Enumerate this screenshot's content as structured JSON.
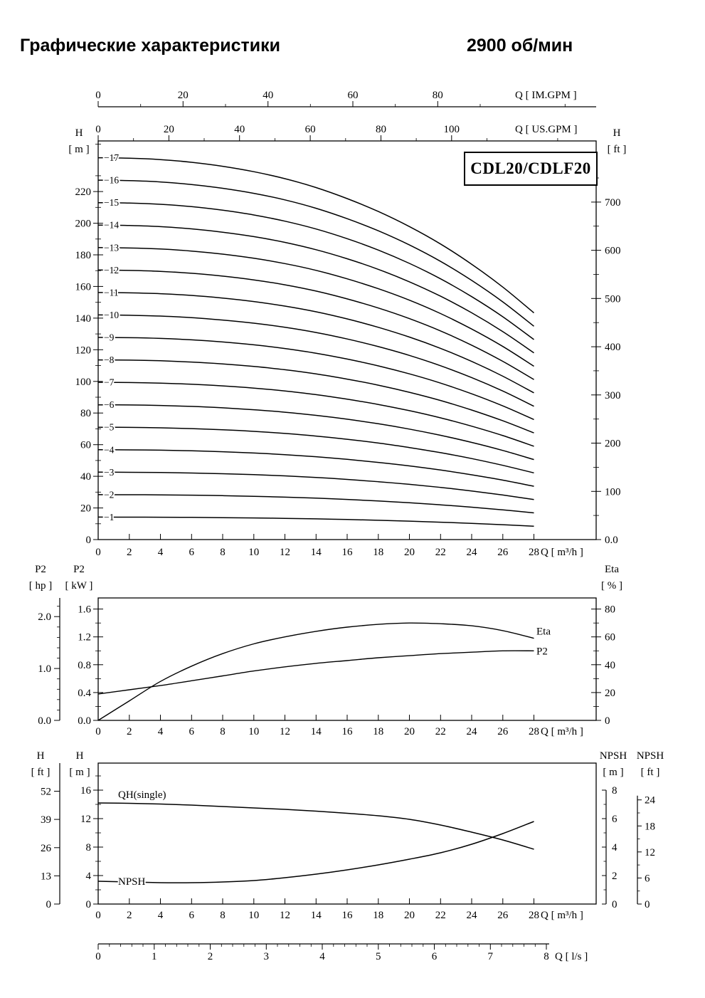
{
  "title": "Графические характеристики",
  "speed": "2900 об/мин",
  "chart_data": [
    {
      "id": "hq-curves",
      "type": "line",
      "title": "CDL20/CDLF20",
      "x": {
        "label": "Q [ m³/h ]",
        "unit": "m³/h",
        "ticks": [
          0,
          2,
          4,
          6,
          8,
          10,
          12,
          14,
          16,
          18,
          20,
          22,
          24,
          26,
          28
        ]
      },
      "x_top_us": {
        "label": "Q [ US.GPM ]",
        "ticks": [
          0,
          20,
          40,
          60,
          80,
          100
        ],
        "m3h_per_unit": 0.22712
      },
      "x_top_im": {
        "label": "Q [ IM.GPM ]",
        "ticks": [
          0,
          20,
          40,
          60,
          80
        ],
        "m3h_per_unit": 0.27276
      },
      "y_left": {
        "name": "H",
        "unit": "[ m ]",
        "vals": [
          0,
          20,
          40,
          60,
          80,
          100,
          120,
          140,
          160,
          180,
          200,
          220
        ],
        "labels": [
          "0",
          "20",
          "40",
          "60",
          "80",
          "100",
          "120",
          "140",
          "160",
          "180",
          "200",
          "220"
        ],
        "max": 252
      },
      "y_right": {
        "name": "H",
        "unit": "[ ft ]",
        "vals": [
          0,
          100,
          200,
          300,
          400,
          500,
          600,
          700
        ],
        "labels": [
          "0.0",
          "100",
          "200",
          "300",
          "400",
          "500",
          "600",
          "700"
        ],
        "m_per_ft": 0.3048
      },
      "single_stage_curve": {
        "q": [
          0,
          2,
          4,
          6,
          8,
          10,
          12,
          14,
          16,
          18,
          20,
          22,
          24,
          26,
          28
        ],
        "h": [
          14.2,
          14.18,
          14.13,
          14.03,
          13.88,
          13.68,
          13.42,
          13.09,
          12.68,
          12.2,
          11.64,
          10.99,
          10.24,
          9.39,
          8.43
        ]
      },
      "stages": [
        {
          "n": 1,
          "label": "−1"
        },
        {
          "n": 2,
          "label": "−2"
        },
        {
          "n": 3,
          "label": "−3"
        },
        {
          "n": 4,
          "label": "−4"
        },
        {
          "n": 5,
          "label": "−5"
        },
        {
          "n": 6,
          "label": "−6"
        },
        {
          "n": 7,
          "label": "−7"
        },
        {
          "n": 8,
          "label": "−8"
        },
        {
          "n": 9,
          "label": "−9"
        },
        {
          "n": 10,
          "label": "−10"
        },
        {
          "n": 11,
          "label": "−11"
        },
        {
          "n": 12,
          "label": "−12"
        },
        {
          "n": 13,
          "label": "−13"
        },
        {
          "n": 14,
          "label": "−14"
        },
        {
          "n": 15,
          "label": "−15"
        },
        {
          "n": 16,
          "label": "−16"
        },
        {
          "n": 17,
          "label": "−17"
        }
      ]
    },
    {
      "id": "power-efficiency",
      "type": "line",
      "x": {
        "label": "Q [ m³/h ]",
        "unit": "m³/h",
        "ticks": [
          0,
          2,
          4,
          6,
          8,
          10,
          12,
          14,
          16,
          18,
          20,
          22,
          24,
          26,
          28
        ]
      },
      "y_left": {
        "name": "P2",
        "unit": "[ kW ]",
        "vals": [
          0,
          0.4,
          0.8,
          1.2,
          1.6
        ],
        "labels": [
          "0.0",
          "0.4",
          "0.8",
          "1.2",
          "1.6"
        ],
        "max": 1.76
      },
      "y_left_outer": {
        "name": "P2",
        "unit": "[ hp ]",
        "vals": [
          0,
          1,
          2
        ],
        "labels": [
          "0.0",
          "1.0",
          "2.0"
        ],
        "kw_per_hp": 0.7457
      },
      "y_right": {
        "name": "Eta",
        "unit": "[ % ]",
        "vals": [
          0,
          20,
          40,
          60,
          80
        ],
        "labels": [
          "0",
          "20",
          "40",
          "60",
          "80"
        ],
        "max": 88
      },
      "series": [
        {
          "name": "Eta",
          "axis": "right",
          "q": [
            0,
            2,
            4,
            6,
            8,
            10,
            12,
            14,
            16,
            18,
            20,
            22,
            24,
            26,
            28
          ],
          "v": [
            0,
            14,
            28,
            39,
            48,
            55,
            60,
            64,
            67,
            69,
            70,
            69.5,
            68,
            64.5,
            59
          ]
        },
        {
          "name": "P2",
          "axis": "left",
          "q": [
            0,
            2,
            4,
            6,
            8,
            10,
            12,
            14,
            16,
            18,
            20,
            22,
            24,
            26,
            28
          ],
          "v": [
            0.38,
            0.44,
            0.5,
            0.57,
            0.64,
            0.71,
            0.77,
            0.82,
            0.86,
            0.9,
            0.93,
            0.96,
            0.98,
            1.0,
            1.0
          ]
        }
      ]
    },
    {
      "id": "qh-npsh",
      "type": "line",
      "x": {
        "label": "Q [ m³/h ]",
        "unit": "m³/h",
        "ticks": [
          0,
          2,
          4,
          6,
          8,
          10,
          12,
          14,
          16,
          18,
          20,
          22,
          24,
          26,
          28
        ]
      },
      "x_bottom_ls": {
        "label": "Q [ l/s ]",
        "ticks": [
          0,
          1,
          2,
          3,
          4,
          5,
          6,
          7,
          8
        ],
        "m3h_per_unit": 3.6
      },
      "y_left": {
        "name": "H",
        "unit": "[ m ]",
        "vals": [
          0,
          4,
          8,
          12,
          16
        ],
        "labels": [
          "0",
          "4",
          "8",
          "12",
          "16"
        ],
        "max": 19.8
      },
      "y_left_outer": {
        "name": "H",
        "unit": "[ ft ]",
        "vals": [
          0,
          13,
          26,
          39,
          52
        ],
        "labels": [
          "0",
          "13",
          "26",
          "39",
          "52"
        ],
        "m_per_ft": 0.3048
      },
      "y_right": {
        "name": "NPSH",
        "unit": "[ m ]",
        "vals": [
          0,
          2,
          4,
          6,
          8
        ],
        "labels": [
          "0",
          "2",
          "4",
          "6",
          "8"
        ],
        "max": 9.9
      },
      "y_right_outer": {
        "name": "NPSH",
        "unit": "[ ft ]",
        "vals": [
          0,
          6,
          12,
          18,
          24
        ],
        "labels": [
          "0",
          "6",
          "12",
          "18",
          "24"
        ],
        "m_per_ft": 0.3048
      },
      "series": [
        {
          "name": "QH(single)",
          "axis": "left",
          "q": [
            0,
            2,
            4,
            6,
            8,
            10,
            12,
            14,
            16,
            18,
            20,
            22,
            24,
            26,
            28
          ],
          "v": [
            14.2,
            14.15,
            14.05,
            13.9,
            13.7,
            13.5,
            13.3,
            13.05,
            12.75,
            12.4,
            11.9,
            11.1,
            10.1,
            9.0,
            7.7
          ]
        },
        {
          "name": "NPSH",
          "axis": "right",
          "q": [
            0,
            2,
            4,
            6,
            8,
            10,
            12,
            14,
            16,
            18,
            20,
            22,
            24,
            26,
            28
          ],
          "v": [
            1.6,
            1.55,
            1.5,
            1.5,
            1.55,
            1.65,
            1.85,
            2.1,
            2.4,
            2.75,
            3.15,
            3.6,
            4.2,
            4.95,
            5.8
          ]
        }
      ]
    }
  ]
}
